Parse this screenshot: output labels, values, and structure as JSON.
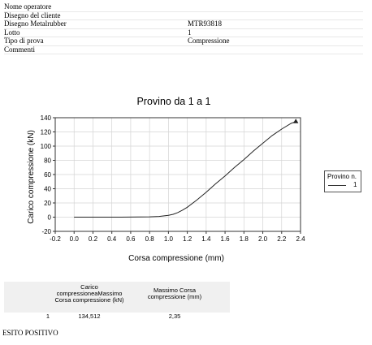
{
  "header": {
    "rows": [
      {
        "label": "Nome operatore",
        "value": ""
      },
      {
        "label": "Disegno del cliente",
        "value": ""
      },
      {
        "label": "Disegno Metalrubber",
        "value": "MTR93818"
      },
      {
        "label": "Lotto",
        "value": "1"
      },
      {
        "label": "Tipo di prova",
        "value": "Compressione"
      },
      {
        "label": "Commenti",
        "value": ""
      }
    ]
  },
  "chart_data": {
    "type": "line",
    "title": "Provino da 1 a 1",
    "xlabel": "Corsa compressione (mm)",
    "ylabel": "Carico compressione (kN)",
    "xlim": [
      -0.2,
      2.4
    ],
    "ylim": [
      -20,
      140
    ],
    "xticks": [
      "-0.2",
      "0.0",
      "0.2",
      "0.4",
      "0.6",
      "0.8",
      "1.0",
      "1.2",
      "1.4",
      "1.6",
      "1.8",
      "2.0",
      "2.2",
      "2.4"
    ],
    "yticks": [
      "-20",
      "0",
      "20",
      "40",
      "60",
      "80",
      "100",
      "120",
      "140"
    ],
    "grid": true,
    "legend": {
      "title": "Provino n.",
      "placement": "right"
    },
    "series": [
      {
        "name": "1",
        "x": [
          0.0,
          0.5,
          0.8,
          0.9,
          1.0,
          1.05,
          1.1,
          1.15,
          1.2,
          1.3,
          1.4,
          1.5,
          1.6,
          1.7,
          1.8,
          1.9,
          2.0,
          2.1,
          2.2,
          2.3,
          2.35
        ],
        "y": [
          0,
          0,
          0.5,
          1,
          2.5,
          4,
          6.5,
          10,
          14,
          24,
          35,
          47,
          58,
          70,
          81,
          93,
          104,
          115,
          124,
          132,
          134.5
        ]
      }
    ],
    "max_marker": {
      "x": 2.35,
      "y": 134.512
    }
  },
  "results": {
    "col1_header": "Carico compressioneaMassimo Corsa compressione (kN)",
    "col2_header": "Massimo Corsa compressione (mm)",
    "rows": [
      {
        "index": "1",
        "c1": "134,512",
        "c2": "2,35"
      }
    ]
  },
  "outcome": "ESITO POSITIVO"
}
